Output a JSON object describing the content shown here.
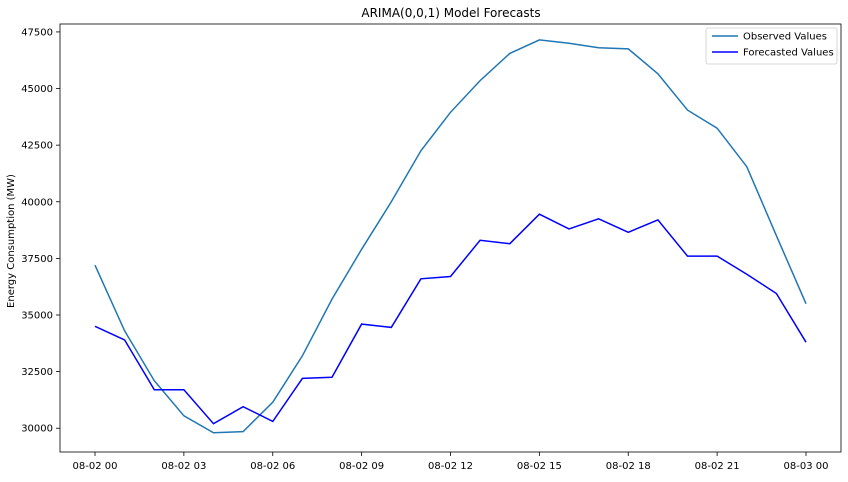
{
  "chart_data": {
    "type": "line",
    "title": "ARIMA(0,0,1) Model Forecasts",
    "xlabel": "",
    "ylabel": "Energy Consumption (MW)",
    "x": [
      "08-02 00:00",
      "08-02 01:00",
      "08-02 02:00",
      "08-02 03:00",
      "08-02 04:00",
      "08-02 05:00",
      "08-02 06:00",
      "08-02 07:00",
      "08-02 08:00",
      "08-02 09:00",
      "08-02 10:00",
      "08-02 11:00",
      "08-02 12:00",
      "08-02 13:00",
      "08-02 14:00",
      "08-02 15:00",
      "08-02 16:00",
      "08-02 17:00",
      "08-02 18:00",
      "08-02 19:00",
      "08-02 20:00",
      "08-02 21:00",
      "08-02 22:00",
      "08-02 23:00",
      "08-03 00:00"
    ],
    "xticks": [
      {
        "value": 0,
        "label": "08-02 00"
      },
      {
        "value": 3,
        "label": "08-02 03"
      },
      {
        "value": 6,
        "label": "08-02 06"
      },
      {
        "value": 9,
        "label": "08-02 09"
      },
      {
        "value": 12,
        "label": "08-02 12"
      },
      {
        "value": 15,
        "label": "08-02 15"
      },
      {
        "value": 18,
        "label": "08-02 18"
      },
      {
        "value": 21,
        "label": "08-02 21"
      },
      {
        "value": 24,
        "label": "08-03 00"
      }
    ],
    "yticks": [
      30000,
      32500,
      35000,
      37500,
      40000,
      42500,
      45000,
      47500
    ],
    "ylim": [
      28950,
      47850
    ],
    "grid": false,
    "legend": "top-right",
    "series": [
      {
        "name": "Observed Values",
        "color": "#1f77b4",
        "values": [
          37200,
          34300,
          32100,
          30550,
          29800,
          29850,
          31150,
          33200,
          35700,
          37900,
          40000,
          42250,
          43950,
          45350,
          46550,
          47150,
          47000,
          46800,
          46750,
          45650,
          44050,
          43250,
          41550,
          38500,
          35500
        ]
      },
      {
        "name": "Forecasted Values",
        "color": "#0000ff",
        "values": [
          34500,
          33900,
          31700,
          31700,
          30200,
          30950,
          30300,
          32200,
          32250,
          34600,
          34450,
          36600,
          36700,
          38300,
          38150,
          39450,
          38800,
          39250,
          38650,
          39200,
          37600,
          37600,
          36800,
          35950,
          33800
        ]
      }
    ]
  }
}
